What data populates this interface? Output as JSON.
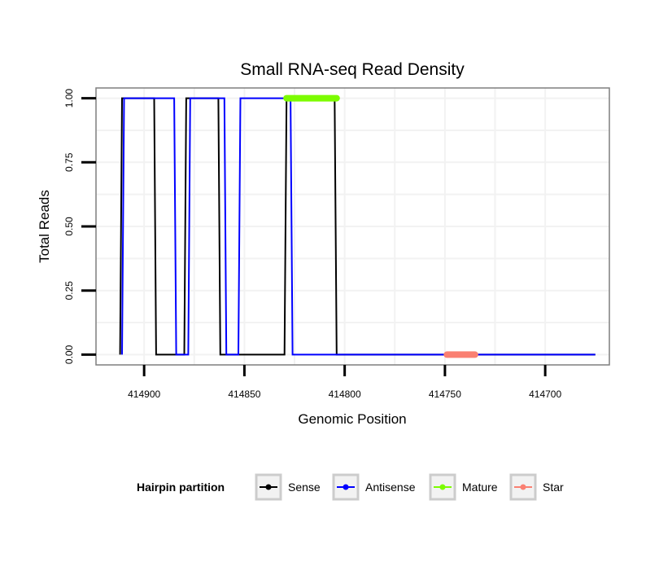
{
  "chart_data": {
    "type": "line",
    "title": "Small RNA-seq Read Density",
    "xlabel": "Genomic Position",
    "ylabel": "Total Reads",
    "x_reversed": true,
    "xlim": [
      414924,
      414668
    ],
    "ylim": [
      -0.04,
      1.04
    ],
    "xticks": [
      414900,
      414850,
      414800,
      414750,
      414700
    ],
    "xtick_labels": [
      "414900",
      "414850",
      "414800",
      "414750",
      "414700"
    ],
    "yticks": [
      0.0,
      0.25,
      0.5,
      0.75,
      1.0
    ],
    "ytick_labels": [
      "0.00",
      "0.25",
      "0.50",
      "0.75",
      "1.00"
    ],
    "grid": true,
    "legend_position": "bottom",
    "legend": {
      "title": "Hairpin partition",
      "entries": [
        {
          "label": "Sense",
          "color": "#000000"
        },
        {
          "label": "Antisense",
          "color": "#0000ff"
        },
        {
          "label": "Mature",
          "color": "#7cfc00"
        },
        {
          "label": "Star",
          "color": "#fa8072"
        }
      ]
    },
    "series": [
      {
        "name": "Sense",
        "color": "#000000",
        "x": [
          414912,
          414911,
          414895,
          414894,
          414880,
          414879,
          414863,
          414862,
          414830,
          414829,
          414805,
          414804,
          414675
        ],
        "y": [
          0,
          1,
          1,
          0,
          0,
          1,
          1,
          0,
          0,
          1,
          1,
          0,
          0
        ]
      },
      {
        "name": "Antisense",
        "color": "#0000ff",
        "x": [
          414911,
          414910,
          414885,
          414884,
          414878,
          414877,
          414860,
          414859,
          414853,
          414852,
          414827,
          414826,
          414675
        ],
        "y": [
          0,
          1,
          1,
          0,
          0,
          1,
          1,
          0,
          0,
          1,
          1,
          0,
          0
        ]
      }
    ],
    "segments": [
      {
        "name": "Mature",
        "color": "#7cfc00",
        "x_start": 414829,
        "x_end": 414804,
        "y": 1.0
      },
      {
        "name": "Star",
        "color": "#fa8072",
        "x_start": 414749,
        "x_end": 414735,
        "y": 0.0
      }
    ]
  }
}
